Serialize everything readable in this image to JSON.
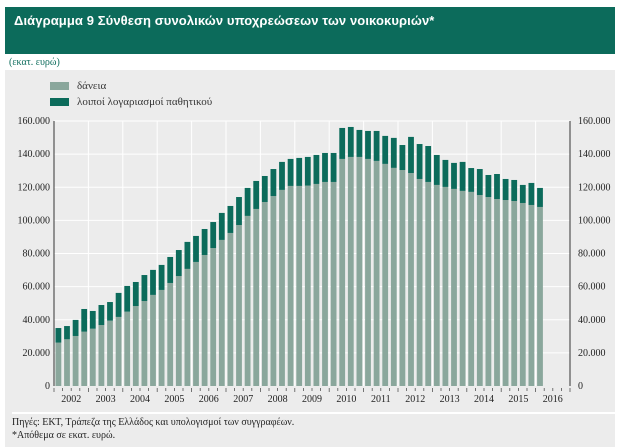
{
  "header": {
    "title": "Διάγραμμα 9  Σύνθεση συνολικών υποχρεώσεων των νοικοκυριών*"
  },
  "unit": "(εκατ. ευρώ)",
  "footer": {
    "source": "Πηγές: ΕΚΤ, Τράπεζα της Ελλάδος και υπολογισμοί των συγγραφέων.",
    "note": "*Απόθεμα σε εκατ. ευρώ."
  },
  "colors": {
    "loans": "#8aa79c",
    "other": "#0c6b5b",
    "header": "#0c6b5b",
    "panel": "#ececec"
  },
  "chart_data": {
    "type": "bar",
    "stacked": true,
    "frequency": "quarterly",
    "start": "2002Q1",
    "xlabel": "",
    "ylabel": "εκατ. ευρώ",
    "ylim": [
      0,
      160000
    ],
    "yticks": [
      "0",
      "20.000",
      "40.000",
      "60.000",
      "80.000",
      "100.000",
      "120.000",
      "140.000",
      "160.000"
    ],
    "year_labels": [
      "2002",
      "2003",
      "2004",
      "2005",
      "2006",
      "2007",
      "2008",
      "2009",
      "2010",
      "2011",
      "2012",
      "2013",
      "2014",
      "2015",
      "2016"
    ],
    "legend": [
      "δάνεια",
      "λοιποί λογαριασμοί παθητικού"
    ],
    "grid": true,
    "series": [
      {
        "name": "δάνεια",
        "values": [
          26200,
          28200,
          30200,
          32800,
          34600,
          36800,
          39500,
          41700,
          44900,
          48300,
          51300,
          55000,
          58000,
          62200,
          66400,
          70700,
          74900,
          79100,
          83300,
          88200,
          92400,
          97200,
          102700,
          106900,
          111100,
          114700,
          118400,
          120800,
          120800,
          121000,
          122000,
          123200,
          123200,
          137100,
          138300,
          138300,
          137100,
          135900,
          134100,
          131700,
          130400,
          128600,
          125000,
          123200,
          121400,
          120200,
          119000,
          117800,
          117200,
          115300,
          114100,
          112900,
          112300,
          111700,
          110500,
          109300,
          108100
        ]
      },
      {
        "name": "λοιποί λογαριασμοί παθητικού",
        "values": [
          8800,
          8000,
          9700,
          13700,
          10700,
          12100,
          11200,
          14500,
          15500,
          14500,
          15700,
          15100,
          15100,
          15700,
          15700,
          16300,
          15700,
          15700,
          15700,
          16300,
          16300,
          16900,
          16900,
          16900,
          15700,
          16300,
          16900,
          16300,
          16900,
          17300,
          17500,
          17500,
          17500,
          18700,
          18100,
          16300,
          16900,
          18100,
          16900,
          18100,
          15100,
          21800,
          21100,
          21700,
          18100,
          16300,
          15700,
          17500,
          14400,
          15700,
          13300,
          15100,
          12700,
          12700,
          10900,
          13300,
          11500
        ]
      }
    ]
  }
}
